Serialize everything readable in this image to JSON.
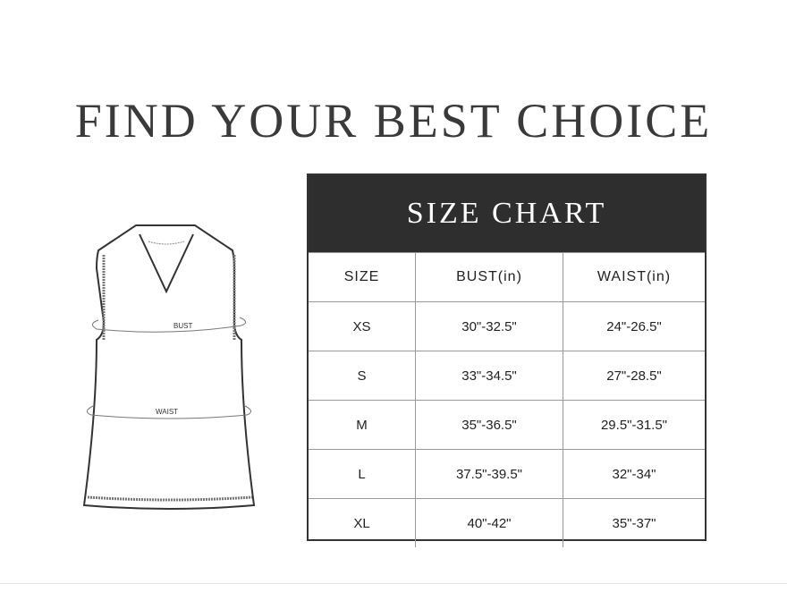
{
  "title": "FIND YOUR BEST CHOICE",
  "diagram": {
    "bust_label": "BUST",
    "waist_label": "WAIST"
  },
  "size_chart": {
    "title": "SIZE CHART",
    "headers": [
      "SIZE",
      "BUST(in)",
      "WAIST(in)"
    ],
    "rows": [
      [
        "XS",
        "30\"-32.5\"",
        "24\"-26.5\""
      ],
      [
        "S",
        "33\"-34.5\"",
        "27\"-28.5\""
      ],
      [
        "M",
        "35\"-36.5\"",
        "29.5\"-31.5\""
      ],
      [
        "L",
        "37.5\"-39.5\"",
        "32\"-34\""
      ],
      [
        "XL",
        "40\"-42\"",
        "35\"-37\""
      ]
    ]
  }
}
